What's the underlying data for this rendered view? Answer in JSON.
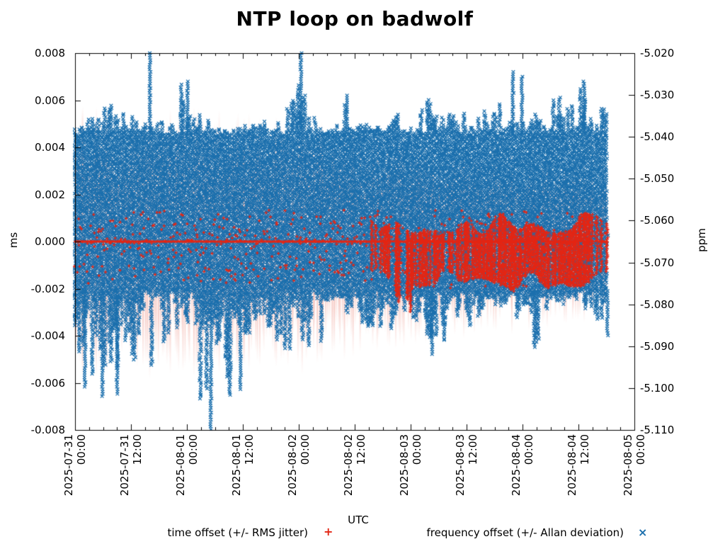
{
  "title": "NTP loop on badwolf",
  "chart_data": {
    "type": "scatter",
    "title": "NTP loop on badwolf",
    "xlabel": "UTC",
    "grid": false,
    "legend_position": "bottom",
    "x_ticks": [
      {
        "date": "2025-07-31",
        "time": "00:00"
      },
      {
        "date": "2025-07-31",
        "time": "12:00"
      },
      {
        "date": "2025-08-01",
        "time": "00:00"
      },
      {
        "date": "2025-08-01",
        "time": "12:00"
      },
      {
        "date": "2025-08-02",
        "time": "00:00"
      },
      {
        "date": "2025-08-02",
        "time": "12:00"
      },
      {
        "date": "2025-08-03",
        "time": "00:00"
      },
      {
        "date": "2025-08-03",
        "time": "12:00"
      },
      {
        "date": "2025-08-04",
        "time": "00:00"
      },
      {
        "date": "2025-08-04",
        "time": "12:00"
      },
      {
        "date": "2025-08-05",
        "time": "00:00"
      }
    ],
    "x_minor_divisions": 4,
    "y_left": {
      "label": "ms",
      "min": -0.008,
      "max": 0.008,
      "ticks": [
        "0.008",
        "0.006",
        "0.004",
        "0.002",
        "0.000",
        "-0.002",
        "-0.004",
        "-0.006",
        "-0.008"
      ]
    },
    "y_right": {
      "label": "ppm",
      "min": -5.11,
      "max": -5.02,
      "ticks": [
        "-5.020",
        "-5.030",
        "-5.040",
        "-5.050",
        "-5.060",
        "-5.070",
        "-5.080",
        "-5.090",
        "-5.100",
        "-5.110"
      ]
    },
    "series": [
      {
        "name": "time offset (+/- RMS jitter)",
        "marker": "plus",
        "legend_glyph": "+",
        "color": "#e32513",
        "errorbar_color": "#f5c2bb",
        "mean_ms": 0.0
      },
      {
        "name": "frequency offset (+/- Allan deviation)",
        "marker": "cross",
        "legend_glyph": "×",
        "color": "#1b6fad",
        "mean_ppm": -5.065
      }
    ],
    "data_span": [
      0.0,
      0.952
    ],
    "envelopes": {
      "n_buckets": 48,
      "freq_upper_ms": [
        0.005,
        0.0055,
        0.006,
        0.0058,
        0.006,
        0.0058,
        0.008,
        0.0052,
        0.0052,
        0.0068,
        0.006,
        0.0057,
        0.0048,
        0.0048,
        0.0048,
        0.005,
        0.0052,
        0.005,
        0.005,
        0.006,
        0.008,
        0.0058,
        0.006,
        0.0055,
        0.0062,
        0.005,
        0.005,
        0.0052,
        0.0052,
        0.0058,
        0.0055,
        0.006,
        0.006,
        0.006,
        0.0058,
        0.0052,
        0.0058,
        0.0055,
        0.0065,
        0.0072,
        0.006,
        0.0058,
        0.0062,
        0.006,
        0.0064,
        0.0068,
        0.0062,
        0.006
      ],
      "freq_lower_ms": [
        -0.006,
        -0.0065,
        -0.0067,
        -0.006,
        -0.0045,
        -0.005,
        -0.005,
        -0.0057,
        -0.0048,
        -0.005,
        -0.0055,
        -0.0078,
        -0.006,
        -0.0068,
        -0.0063,
        -0.005,
        -0.0056,
        -0.0048,
        -0.0045,
        -0.0048,
        -0.005,
        -0.0051,
        -0.0048,
        -0.004,
        -0.004,
        -0.0043,
        -0.004,
        -0.004,
        -0.0038,
        -0.0035,
        -0.0035,
        -0.0048,
        -0.0042,
        -0.0044,
        -0.004,
        -0.004,
        -0.0032,
        -0.003,
        -0.0028,
        -0.003,
        -0.0032,
        -0.0045,
        -0.0028,
        -0.0026,
        -0.0028,
        -0.003,
        -0.003,
        -0.004
      ],
      "freq_core_ms": [
        -0.0021,
        0.0046
      ],
      "time_upper_ms": [
        0.0012,
        0.0012,
        0.0012,
        0.0012,
        0.0012,
        0.0012,
        0.0012,
        0.0012,
        0.0012,
        0.0012,
        0.0012,
        0.0012,
        0.0012,
        0.0012,
        0.0012,
        0.0012,
        0.0012,
        0.0012,
        0.0012,
        0.0012,
        0.0012,
        0.0012,
        0.0012,
        0.0012,
        0.0012,
        0.0012,
        0.0012,
        0.001,
        0.0009,
        0.0006,
        0.0007,
        0.0009,
        0.0008,
        0.001,
        0.0009,
        0.0011,
        0.0009,
        0.0011,
        0.001,
        0.0014,
        0.0011,
        0.0009,
        0.0012,
        0.001,
        0.0013,
        0.0014,
        0.0012,
        0.0008
      ],
      "time_lower_ms": [
        -0.0018,
        -0.0018,
        -0.0018,
        -0.0018,
        -0.0018,
        -0.0018,
        -0.0018,
        -0.0018,
        -0.0018,
        -0.0018,
        -0.0018,
        -0.0018,
        -0.0018,
        -0.0018,
        -0.0018,
        -0.0018,
        -0.0018,
        -0.0018,
        -0.0018,
        -0.0018,
        -0.0018,
        -0.0018,
        -0.0018,
        -0.0018,
        -0.0018,
        -0.0018,
        -0.0018,
        -0.0018,
        -0.0018,
        -0.003,
        -0.002,
        -0.002,
        -0.002,
        -0.002,
        -0.002,
        -0.002,
        -0.002,
        -0.002,
        -0.002,
        -0.0022,
        -0.002,
        -0.002,
        -0.002,
        -0.002,
        -0.0022,
        -0.002,
        -0.0018,
        -0.0016
      ],
      "time_solid_density": [
        0,
        0,
        0,
        0,
        0,
        0,
        0,
        0,
        0,
        0,
        0,
        0,
        0,
        0,
        0,
        0,
        0,
        0,
        0,
        0,
        0,
        0,
        0,
        0,
        0,
        0,
        0,
        0.25,
        0.3,
        0.35,
        0.45,
        0.5,
        0.5,
        0.55,
        0.55,
        0.6,
        0.6,
        0.75,
        0.8,
        0.9,
        0.85,
        0.7,
        0.7,
        0.65,
        0.9,
        0.9,
        0.55,
        0.3
      ],
      "rms_jitter_halfwidth_ms": [
        0.005,
        0.005,
        0.005,
        0.005,
        0.005,
        0.0049,
        0.0049,
        0.0048,
        0.0048,
        0.0048,
        0.0048,
        0.0048,
        0.0047,
        0.0047,
        0.0047,
        0.0046,
        0.0046,
        0.0045,
        0.0045,
        0.0046,
        0.0047,
        0.0045,
        0.0044,
        0.0042,
        0.0042,
        0.004,
        0.004,
        0.004,
        0.0038,
        0.0038,
        0.0036,
        0.0037,
        0.0036,
        0.0036,
        0.0035,
        0.0034,
        0.0033,
        0.0033,
        0.0032,
        0.0033,
        0.0032,
        0.0032,
        0.0031,
        0.003,
        0.0031,
        0.0031,
        0.003,
        0.0028
      ]
    },
    "freq_spikes": [
      {
        "f": 0.134,
        "ms": 0.008
      },
      {
        "f": 0.404,
        "ms": 0.008
      },
      {
        "f": 0.201,
        "ms": 0.0068
      },
      {
        "f": 0.783,
        "ms": 0.0072
      },
      {
        "f": 0.799,
        "ms": 0.007
      },
      {
        "f": 0.91,
        "ms": 0.0068
      },
      {
        "f": 0.486,
        "ms": 0.0062
      },
      {
        "f": 0.018,
        "ms": -0.0062
      },
      {
        "f": 0.049,
        "ms": -0.0066
      },
      {
        "f": 0.075,
        "ms": -0.0065
      },
      {
        "f": 0.243,
        "ms": -0.008
      },
      {
        "f": 0.296,
        "ms": -0.0063
      },
      {
        "f": 0.638,
        "ms": -0.0048
      },
      {
        "f": 0.821,
        "ms": -0.0045
      },
      {
        "f": 0.952,
        "ms": -0.004
      }
    ],
    "time_spikes": [
      {
        "f": 0.6,
        "ms": -0.003
      }
    ]
  }
}
